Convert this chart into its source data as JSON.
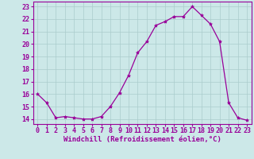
{
  "x": [
    0,
    1,
    2,
    3,
    4,
    5,
    6,
    7,
    8,
    9,
    10,
    11,
    12,
    13,
    14,
    15,
    16,
    17,
    18,
    19,
    20,
    21,
    22,
    23
  ],
  "y": [
    16.0,
    15.3,
    14.1,
    14.2,
    14.1,
    14.0,
    14.0,
    14.2,
    15.0,
    16.1,
    17.5,
    19.3,
    20.2,
    21.5,
    21.8,
    22.2,
    22.2,
    23.0,
    22.3,
    21.6,
    20.2,
    15.3,
    14.1,
    13.9
  ],
  "line_color": "#990099",
  "marker": "*",
  "marker_size": 3,
  "xlabel": "Windchill (Refroidissement éolien,°C)",
  "ylabel_ticks": [
    14,
    15,
    16,
    17,
    18,
    19,
    20,
    21,
    22,
    23
  ],
  "xlim": [
    -0.5,
    23.5
  ],
  "ylim": [
    13.6,
    23.4
  ],
  "bg_color": "#cce8e8",
  "grid_color": "#aacccc",
  "xlabel_fontsize": 6.5,
  "tick_fontsize": 6.0
}
